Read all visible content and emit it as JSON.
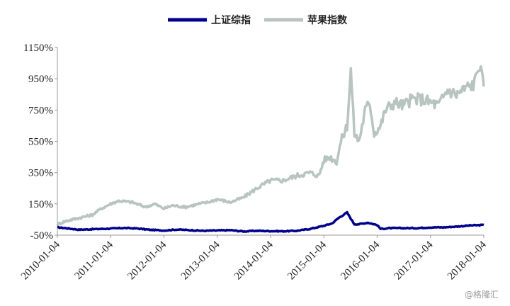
{
  "watermark": "@格隆汇",
  "chart_data": {
    "type": "line",
    "title": "",
    "xlabel": "",
    "ylabel": "",
    "ylim": [
      -50,
      1150
    ],
    "y_ticks": [
      "1150%",
      "950%",
      "750%",
      "550%",
      "350%",
      "150%",
      "-50%"
    ],
    "y_tick_values": [
      1150,
      950,
      750,
      550,
      350,
      150,
      -50
    ],
    "x_ticks": [
      "2010-01-04",
      "2011-01-04",
      "2012-01-04",
      "2013-01-04",
      "2014-01-04",
      "2015-01-04",
      "2016-01-04",
      "2017-01-04",
      "2018-01-04"
    ],
    "xlim": [
      "2010-01-04",
      "2018-01-04"
    ],
    "legend_position": "top-center",
    "grid": false,
    "series": [
      {
        "name": "上证综指",
        "color": "#00008b",
        "x": [
          "2010-01-04",
          "2010-03-01",
          "2010-06-01",
          "2010-09-01",
          "2011-01-04",
          "2011-04-01",
          "2011-07-01",
          "2011-10-01",
          "2012-01-04",
          "2012-04-01",
          "2012-07-01",
          "2012-10-01",
          "2013-01-04",
          "2013-04-01",
          "2013-07-01",
          "2013-10-01",
          "2014-01-04",
          "2014-04-01",
          "2014-07-01",
          "2014-10-01",
          "2015-01-04",
          "2015-03-01",
          "2015-04-15",
          "2015-06-12",
          "2015-07-08",
          "2015-08-01",
          "2015-09-01",
          "2015-11-01",
          "2016-01-04",
          "2016-01-28",
          "2016-04-01",
          "2016-07-01",
          "2016-10-01",
          "2017-01-04",
          "2017-04-01",
          "2017-07-01",
          "2017-10-01",
          "2018-01-04"
        ],
        "values": [
          0,
          -5,
          -15,
          -12,
          -8,
          -4,
          -7,
          -16,
          -20,
          -14,
          -18,
          -22,
          -20,
          -18,
          -26,
          -22,
          -24,
          -25,
          -22,
          -10,
          10,
          25,
          60,
          95,
          55,
          20,
          20,
          30,
          15,
          -10,
          -5,
          -5,
          -5,
          0,
          0,
          5,
          12,
          15
        ]
      },
      {
        "name": "苹果指数",
        "color": "#b8c4c0",
        "x": [
          "2010-01-04",
          "2010-03-01",
          "2010-06-01",
          "2010-09-01",
          "2010-11-01",
          "2011-01-04",
          "2011-03-01",
          "2011-06-01",
          "2011-09-01",
          "2011-11-01",
          "2012-01-04",
          "2012-03-01",
          "2012-06-01",
          "2012-09-01",
          "2012-11-01",
          "2013-01-04",
          "2013-04-01",
          "2013-07-01",
          "2013-10-01",
          "2014-01-04",
          "2014-04-01",
          "2014-07-01",
          "2014-10-01",
          "2014-12-01",
          "2015-01-04",
          "2015-02-15",
          "2015-04-01",
          "2015-05-01",
          "2015-06-12",
          "2015-07-08",
          "2015-08-01",
          "2015-09-01",
          "2015-10-15",
          "2015-11-15",
          "2015-12-15",
          "2016-01-28",
          "2016-03-01",
          "2016-05-01",
          "2016-07-01",
          "2016-09-01",
          "2016-11-01",
          "2017-01-04",
          "2017-03-01",
          "2017-05-01",
          "2017-07-01",
          "2017-09-01",
          "2017-11-01",
          "2017-12-01",
          "2018-01-04"
        ],
        "values": [
          20,
          40,
          60,
          80,
          120,
          150,
          170,
          160,
          130,
          150,
          120,
          140,
          130,
          150,
          160,
          180,
          160,
          190,
          250,
          300,
          300,
          330,
          350,
          330,
          430,
          450,
          420,
          550,
          650,
          1000,
          600,
          550,
          750,
          800,
          600,
          650,
          750,
          800,
          780,
          820,
          820,
          800,
          780,
          880,
          850,
          890,
          920,
          1050,
          900
        ]
      }
    ]
  }
}
